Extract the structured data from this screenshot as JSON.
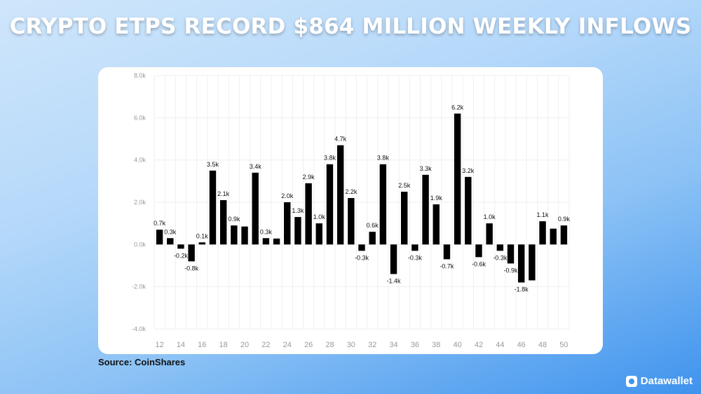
{
  "headline": "CRYPTO ETPS RECORD $864 MILLION WEEKLY INFLOWS",
  "source": "Source: CoinShares",
  "brand": "Datawallet",
  "chart_data": {
    "type": "bar",
    "title": "",
    "xlabel": "",
    "ylabel": "",
    "ylim": [
      -4000,
      8000
    ],
    "y_ticks": [
      8000,
      6000,
      4000,
      2000,
      0,
      -2000,
      -4000
    ],
    "y_tick_labels": [
      "8.0k",
      "6.0k",
      "4.0k",
      "2.0k",
      "0.0k",
      "-2.0k",
      "-4.0k"
    ],
    "x_ticks": [
      12,
      14,
      16,
      18,
      20,
      22,
      24,
      26,
      28,
      30,
      32,
      34,
      36,
      38,
      40,
      42,
      44,
      46,
      48,
      50
    ],
    "grid": true,
    "bar_color": "#000000",
    "x": [
      12,
      13,
      14,
      15,
      16,
      17,
      18,
      19,
      20,
      21,
      22,
      23,
      24,
      25,
      26,
      27,
      28,
      29,
      30,
      31,
      32,
      33,
      34,
      35,
      36,
      37,
      38,
      39,
      40,
      41,
      42,
      43,
      44,
      45,
      46,
      47,
      48,
      49,
      50
    ],
    "values": [
      700,
      300,
      -200,
      -800,
      100,
      3500,
      2100,
      900,
      850,
      3400,
      300,
      280,
      2000,
      1300,
      2900,
      1000,
      3800,
      4700,
      2200,
      -300,
      600,
      3800,
      -1400,
      2500,
      -300,
      3300,
      1900,
      -700,
      6200,
      3200,
      -600,
      1000,
      -300,
      -900,
      -1800,
      -1700,
      1100,
      750,
      900
    ],
    "labels": [
      "0.7k",
      "0.3k",
      "-0.2k",
      "-0.8k",
      "0.1k",
      "3.5k",
      "2.1k",
      "0.9k",
      "",
      "3.4k",
      "0.3k",
      "",
      "2.0k",
      "1.3k",
      "2.9k",
      "1.0k",
      "3.8k",
      "4.7k",
      "2.2k",
      "-0.3k",
      "0.6k",
      "3.8k",
      "-1.4k",
      "2.5k",
      "-0.3k",
      "3.3k",
      "1.9k",
      "-0.7k",
      "6.2k",
      "3.2k",
      "-0.6k",
      "1.0k",
      "-0.3k",
      "-0.9k",
      "-1.8k",
      "",
      "1.1k",
      "",
      "0.9k"
    ]
  }
}
